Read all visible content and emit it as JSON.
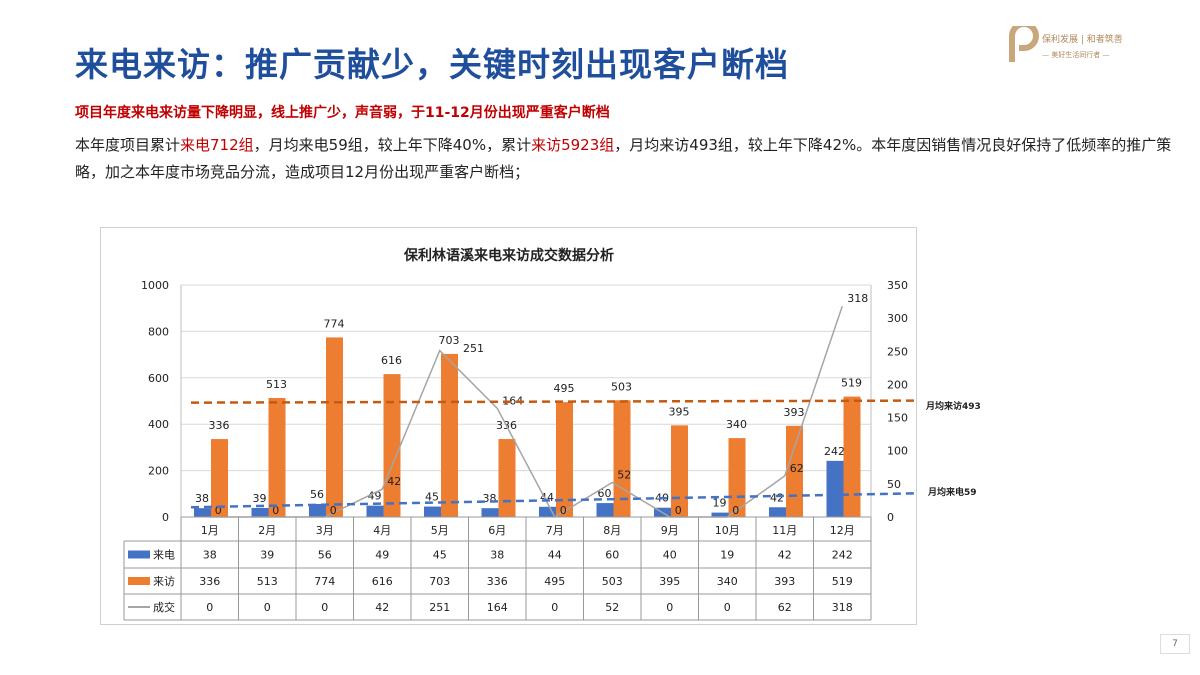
{
  "title": "来电来访：推广贡献少，关键时刻出现客户断档",
  "logo": {
    "brand": "保利®发展",
    "slogan": "和者筑善",
    "tagline": "美好生活同行者"
  },
  "subtitle": "项目年度来电来访量下降明显，线上推广少，声音弱，于11-12月份出现严重客户断档",
  "body": {
    "p1": "本年度项目累计",
    "h1": "来电712组",
    "p2": "，月均来电59组，较上年下降40%，累计",
    "h2": "来访5923组",
    "p3": "，月均来访493组，较上年下降42%。本年度因销售情况良好保持了低频率的推广策略，加之本年度市场竞品分流，造成项目12月份出现严重客户断档；"
  },
  "page_number": "7",
  "colors": {
    "calls": "#4472c4",
    "visits": "#ed7d31",
    "deals": "#a5a5a5",
    "avg_visits": "#c55a11",
    "avg_calls": "#4472c4"
  },
  "chart_data": {
    "type": "bar",
    "title": "保利林语溪来电来访成交数据分析",
    "categories": [
      "1月",
      "2月",
      "3月",
      "4月",
      "5月",
      "6月",
      "7月",
      "8月",
      "9月",
      "10月",
      "11月",
      "12月"
    ],
    "series": [
      {
        "name": "来电",
        "kind": "bar",
        "axis": "left",
        "values": [
          38,
          39,
          56,
          49,
          45,
          38,
          44,
          60,
          40,
          19,
          42,
          242
        ]
      },
      {
        "name": "来访",
        "kind": "bar",
        "axis": "left",
        "values": [
          336,
          513,
          774,
          616,
          703,
          336,
          495,
          503,
          395,
          340,
          393,
          519
        ]
      },
      {
        "name": "成交",
        "kind": "line",
        "axis": "right",
        "values": [
          0,
          0,
          0,
          42,
          251,
          164,
          0,
          52,
          0,
          0,
          62,
          318
        ]
      }
    ],
    "ylim_left": [
      0,
      1000
    ],
    "yticks_left": [
      0,
      200,
      400,
      600,
      800,
      1000
    ],
    "ylim_right": [
      0,
      350
    ],
    "yticks_right": [
      0,
      50,
      100,
      150,
      200,
      250,
      300,
      350
    ],
    "reference_lines": [
      {
        "label": "月均来访493",
        "value": 493,
        "axis": "left"
      },
      {
        "label": "月均来电59",
        "value": 59,
        "axis": "left"
      }
    ],
    "data_table": true,
    "grid": true
  }
}
